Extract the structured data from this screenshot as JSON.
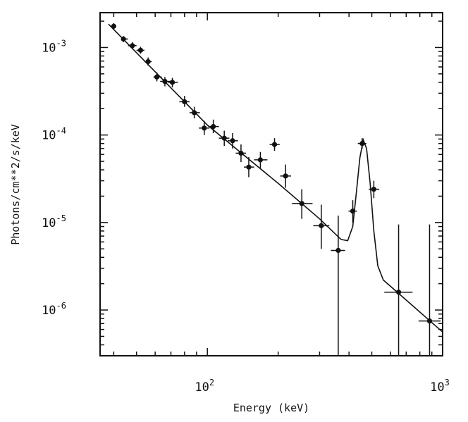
{
  "chart_data": {
    "type": "scatter",
    "title": "",
    "xlabel": "Energy (keV)",
    "ylabel": "Photons/cm**2/s/keV",
    "x_scale": "log",
    "y_scale": "log",
    "xlim": [
      35,
      1000
    ],
    "ylim": [
      3e-07,
      0.0025
    ],
    "grid": false,
    "x_tick_labels": [
      {
        "value": 100,
        "base": "10",
        "exp": "2"
      },
      {
        "value": 1000,
        "base": "10",
        "exp": "3"
      }
    ],
    "y_tick_labels": [
      {
        "value": 0.001,
        "base": "10",
        "exp": "-3"
      },
      {
        "value": 0.0001,
        "base": "10",
        "exp": "-4"
      },
      {
        "value": 1e-05,
        "base": "10",
        "exp": "-5"
      },
      {
        "value": 1e-06,
        "base": "10",
        "exp": "-6"
      }
    ],
    "series": [
      {
        "points": [
          {
            "x": 40,
            "y": 0.00175,
            "xerr": [
              39,
              41
            ],
            "yerr": [
              0.0016,
              0.0019
            ]
          },
          {
            "x": 44,
            "y": 0.00125,
            "xerr": [
              43,
              46
            ],
            "yerr": [
              0.00115,
              0.00135
            ]
          },
          {
            "x": 48,
            "y": 0.00105,
            "xerr": [
              46,
              50
            ],
            "yerr": [
              0.00096,
              0.00115
            ]
          },
          {
            "x": 52,
            "y": 0.00093,
            "xerr": [
              50,
              54
            ],
            "yerr": [
              0.00085,
              0.00102
            ]
          },
          {
            "x": 56,
            "y": 0.00069,
            "xerr": [
              54,
              58
            ],
            "yerr": [
              0.00062,
              0.00077
            ]
          },
          {
            "x": 61,
            "y": 0.00046,
            "xerr": [
              59,
              64
            ],
            "yerr": [
              0.00041,
              0.00052
            ]
          },
          {
            "x": 66,
            "y": 0.00041,
            "xerr": [
              63,
              70
            ],
            "yerr": [
              0.00036,
              0.00046
            ]
          },
          {
            "x": 71,
            "y": 0.0004,
            "xerr": [
              68,
              75
            ],
            "yerr": [
              0.00035,
              0.00045
            ]
          },
          {
            "x": 80,
            "y": 0.00024,
            "xerr": [
              76,
              84
            ],
            "yerr": [
              0.00021,
              0.00028
            ]
          },
          {
            "x": 88,
            "y": 0.00018,
            "xerr": [
              84,
              93
            ],
            "yerr": [
              0.000155,
              0.00021
            ]
          },
          {
            "x": 97,
            "y": 0.00012,
            "xerr": [
              92,
              102
            ],
            "yerr": [
              0.0001,
              0.000145
            ]
          },
          {
            "x": 106,
            "y": 0.000125,
            "xerr": [
              101,
              112
            ],
            "yerr": [
              0.000105,
              0.00015
            ]
          },
          {
            "x": 118,
            "y": 9.2e-05,
            "xerr": [
              112,
              124
            ],
            "yerr": [
              7.5e-05,
              0.000112
            ]
          },
          {
            "x": 128,
            "y": 8.6e-05,
            "xerr": [
              122,
              135
            ],
            "yerr": [
              7e-05,
              0.000105
            ]
          },
          {
            "x": 139,
            "y": 6.2e-05,
            "xerr": [
              132,
              146
            ],
            "yerr": [
              4.9e-05,
              7.8e-05
            ]
          },
          {
            "x": 150,
            "y": 4.3e-05,
            "xerr": [
              143,
              158
            ],
            "yerr": [
              3.3e-05,
              5.6e-05
            ]
          },
          {
            "x": 168,
            "y": 5.2e-05,
            "xerr": [
              158,
              180
            ],
            "yerr": [
              4.2e-05,
              6.4e-05
            ]
          },
          {
            "x": 193,
            "y": 7.8e-05,
            "xerr": [
              184,
              203
            ],
            "yerr": [
              6.6e-05,
              9.2e-05
            ]
          },
          {
            "x": 215,
            "y": 3.4e-05,
            "xerr": [
              204,
              227
            ],
            "yerr": [
              2.5e-05,
              4.6e-05
            ]
          },
          {
            "x": 252,
            "y": 1.65e-05,
            "xerr": [
              229,
              280
            ],
            "yerr": [
              1.1e-05,
              2.4e-05
            ]
          },
          {
            "x": 305,
            "y": 9.2e-06,
            "xerr": [
              282,
              330
            ],
            "yerr": [
              5e-06,
              1.6e-05
            ]
          },
          {
            "x": 360,
            "y": 4.8e-06,
            "xerr": [
              335,
              385
            ],
            "yerr": [
              3e-07,
              1.2e-05
            ]
          },
          {
            "x": 415,
            "y": 1.35e-05,
            "xerr": [
              398,
              432
            ],
            "yerr": [
              1e-05,
              1.8e-05
            ]
          },
          {
            "x": 455,
            "y": 8e-05,
            "xerr": [
              436,
              474
            ],
            "yerr": [
              7e-05,
              9.2e-05
            ]
          },
          {
            "x": 510,
            "y": 2.4e-05,
            "xerr": [
              485,
              538
            ],
            "yerr": [
              1.9e-05,
              3e-05
            ]
          },
          {
            "x": 650,
            "y": 1.6e-06,
            "xerr": [
              565,
              745
            ],
            "yerr": [
              3e-07,
              9.5e-06
            ]
          },
          {
            "x": 880,
            "y": 7.5e-07,
            "xerr": [
              790,
              980
            ],
            "yerr": [
              3e-07,
              9.5e-06
            ]
          }
        ]
      },
      {
        "type": "line",
        "points": [
          {
            "x": 38,
            "y": 0.00185
          },
          {
            "x": 100,
            "y": 0.00013
          },
          {
            "x": 200,
            "y": 2.8e-05
          },
          {
            "x": 300,
            "y": 1.1e-05
          },
          {
            "x": 370,
            "y": 6.4e-06
          },
          {
            "x": 395,
            "y": 6.2e-06
          },
          {
            "x": 415,
            "y": 9e-06
          },
          {
            "x": 430,
            "y": 2.2e-05
          },
          {
            "x": 445,
            "y": 5.5e-05
          },
          {
            "x": 460,
            "y": 8.8e-05
          },
          {
            "x": 475,
            "y": 7e-05
          },
          {
            "x": 492,
            "y": 2.8e-05
          },
          {
            "x": 510,
            "y": 8e-06
          },
          {
            "x": 530,
            "y": 3.2e-06
          },
          {
            "x": 560,
            "y": 2.2e-06
          },
          {
            "x": 700,
            "y": 1.3e-06
          },
          {
            "x": 1000,
            "y": 5.6e-07
          }
        ]
      }
    ]
  }
}
